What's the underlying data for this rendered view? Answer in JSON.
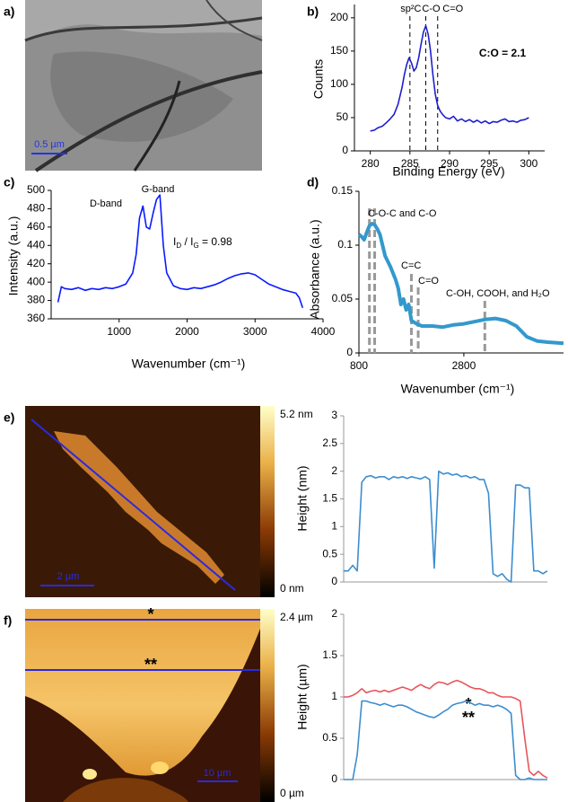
{
  "images": [
    {
      "label": "a)",
      "scale_bar": "0.5 µm"
    },
    {
      "label": "e)",
      "scale_bar": "2 µm",
      "colorbar_max": "5.2 nm",
      "colorbar_min": "0 nm"
    },
    {
      "label": "f)",
      "scale_bar": "10 µm",
      "colorbar_max": "2.4 µm",
      "colorbar_min": "0 µm",
      "line_labels": [
        "*",
        "**"
      ]
    }
  ],
  "chart_data": [
    {
      "type": "line",
      "panel_label": "b)",
      "x_label": "Binding Energy (eV)",
      "y_label": "Counts",
      "color": "#1f1fd0",
      "xlim": [
        278,
        302
      ],
      "xticks": [
        280,
        285,
        290,
        295,
        300
      ],
      "ylim": [
        0,
        220
      ],
      "yticks": [
        0,
        50,
        100,
        150,
        200
      ],
      "x": [
        280,
        280.5,
        281,
        281.5,
        282,
        282.5,
        283,
        283.5,
        284,
        284.3,
        284.6,
        284.9,
        285.2,
        285.5,
        285.8,
        286.1,
        286.4,
        286.7,
        287,
        287.3,
        287.6,
        287.9,
        288.2,
        288.5,
        288.8,
        289.1,
        289.5,
        290,
        290.5,
        291,
        291.5,
        292,
        292.5,
        293,
        293.5,
        294,
        294.5,
        295,
        295.5,
        296,
        296.5,
        297,
        297.5,
        298,
        298.5,
        299,
        299.5,
        300
      ],
      "values": [
        30,
        31,
        35,
        37,
        42,
        48,
        55,
        70,
        95,
        115,
        130,
        140,
        132,
        120,
        125,
        140,
        160,
        178,
        188,
        175,
        150,
        115,
        85,
        68,
        60,
        55,
        50,
        48,
        52,
        45,
        48,
        44,
        47,
        43,
        46,
        42,
        45,
        41,
        44,
        43,
        46,
        48,
        44,
        45,
        43,
        46,
        47,
        50
      ],
      "markers": [
        {
          "x": 285,
          "label": "sp²C"
        },
        {
          "x": 287,
          "label": "C-O"
        },
        {
          "x": 288.5,
          "label": "C=O"
        }
      ],
      "annotation": "C:O = 2.1"
    },
    {
      "type": "line",
      "panel_label": "c)",
      "x_label": "Wavenumber (cm⁻¹)",
      "y_label": "Intensity (a.u.)",
      "color": "#0a1aff",
      "xlim": [
        0,
        4000
      ],
      "xticks": [
        1000,
        2000,
        3000,
        4000
      ],
      "ylim": [
        360,
        500
      ],
      "yticks": [
        360,
        380,
        400,
        420,
        440,
        460,
        480,
        500
      ],
      "x": [
        100,
        150,
        200,
        300,
        400,
        500,
        600,
        700,
        800,
        900,
        1000,
        1100,
        1200,
        1250,
        1300,
        1350,
        1400,
        1450,
        1500,
        1550,
        1600,
        1650,
        1700,
        1800,
        1900,
        2000,
        2100,
        2200,
        2300,
        2400,
        2500,
        2600,
        2700,
        2800,
        2900,
        3000,
        3100,
        3200,
        3300,
        3400,
        3500,
        3600,
        3650,
        3700
      ],
      "values": [
        378,
        395,
        393,
        392,
        394,
        391,
        393,
        392,
        394,
        393,
        395,
        398,
        410,
        430,
        470,
        483,
        460,
        458,
        475,
        490,
        495,
        440,
        410,
        396,
        393,
        392,
        394,
        393,
        395,
        397,
        400,
        404,
        407,
        409,
        410,
        408,
        403,
        398,
        395,
        392,
        390,
        388,
        383,
        372
      ],
      "annotations": [
        "D-band",
        "G-band"
      ],
      "ratio_label": [
        {
          "text": "I"
        },
        {
          "text": "D",
          "sub": true
        },
        {
          "text": " / I"
        },
        {
          "text": "G",
          "sub": true
        },
        {
          "text": " = 0.98"
        }
      ]
    },
    {
      "type": "line",
      "panel_label": "d)",
      "x_label": "Wavenumber (cm⁻¹)",
      "y_label": "Absorbance (a.u.)",
      "color": "#3399cc",
      "xlim": [
        800,
        4700
      ],
      "xticks": [
        800,
        2800
      ],
      "ylim": [
        0,
        0.15
      ],
      "yticks": [
        0,
        0.05,
        0.1,
        0.15
      ],
      "x": [
        800,
        850,
        900,
        950,
        1000,
        1050,
        1100,
        1150,
        1200,
        1300,
        1400,
        1500,
        1550,
        1600,
        1650,
        1700,
        1750,
        1800,
        1900,
        2000,
        2200,
        2400,
        2600,
        2800,
        3000,
        3200,
        3400,
        3600,
        3800,
        4000,
        4200,
        4400,
        4700
      ],
      "values": [
        0.11,
        0.108,
        0.105,
        0.112,
        0.118,
        0.12,
        0.119,
        0.115,
        0.11,
        0.09,
        0.08,
        0.068,
        0.06,
        0.045,
        0.05,
        0.04,
        0.045,
        0.03,
        0.027,
        0.025,
        0.025,
        0.024,
        0.026,
        0.027,
        0.029,
        0.031,
        0.032,
        0.03,
        0.025,
        0.015,
        0.011,
        0.01,
        0.009
      ],
      "markers": [
        {
          "x": 1000
        },
        {
          "x": 1100
        },
        {
          "x": 1800
        },
        {
          "x": 1930
        },
        {
          "x": 3200
        }
      ],
      "annotations": [
        "C-O-C and C-O",
        "C=C",
        "C=O",
        "C-OH, COOH, and H₂O"
      ]
    },
    {
      "type": "line",
      "y_label": "Height (nm)",
      "color": "#3c8dd0",
      "ylim": [
        0,
        3
      ],
      "yticks": [
        0,
        0.5,
        1,
        1.5,
        2,
        2.5,
        3
      ],
      "values": [
        0.2,
        0.2,
        0.3,
        0.2,
        1.8,
        1.9,
        1.92,
        1.88,
        1.9,
        1.9,
        1.85,
        1.9,
        1.88,
        1.9,
        1.87,
        1.9,
        1.88,
        1.86,
        1.9,
        1.85,
        0.25,
        2.0,
        1.95,
        1.97,
        1.93,
        1.95,
        1.9,
        1.92,
        1.88,
        1.9,
        1.85,
        1.85,
        1.6,
        0.15,
        0.1,
        0.15,
        0.05,
        0.0,
        1.75,
        1.75,
        1.7,
        1.7,
        0.2,
        0.2,
        0.15,
        0.2
      ]
    },
    {
      "type": "line",
      "y_label": "Height (µm)",
      "ylim": [
        0,
        2
      ],
      "yticks": [
        0,
        0.5,
        1,
        1.5,
        2
      ],
      "series": [
        {
          "name": "*",
          "color": "#e8555a",
          "values": [
            1.0,
            1.0,
            1.02,
            1.05,
            1.1,
            1.05,
            1.07,
            1.08,
            1.06,
            1.08,
            1.06,
            1.08,
            1.1,
            1.12,
            1.1,
            1.08,
            1.12,
            1.15,
            1.12,
            1.1,
            1.15,
            1.18,
            1.17,
            1.15,
            1.18,
            1.2,
            1.18,
            1.15,
            1.12,
            1.1,
            1.1,
            1.08,
            1.05,
            1.05,
            1.02,
            1.0,
            1.0,
            1.0,
            0.98,
            0.95,
            0.5,
            0.1,
            0.05,
            0.1,
            0.05,
            0.02
          ]
        },
        {
          "name": "**",
          "color": "#3c8dd0",
          "values": [
            0,
            0,
            0,
            0.3,
            0.95,
            0.95,
            0.93,
            0.92,
            0.9,
            0.92,
            0.9,
            0.88,
            0.9,
            0.9,
            0.88,
            0.85,
            0.82,
            0.8,
            0.78,
            0.76,
            0.75,
            0.78,
            0.82,
            0.85,
            0.9,
            0.92,
            0.93,
            0.95,
            0.93,
            0.9,
            0.92,
            0.9,
            0.9,
            0.88,
            0.9,
            0.88,
            0.85,
            0.8,
            0.05,
            0,
            0,
            0.02,
            0,
            0,
            0,
            0
          ]
        }
      ]
    }
  ]
}
